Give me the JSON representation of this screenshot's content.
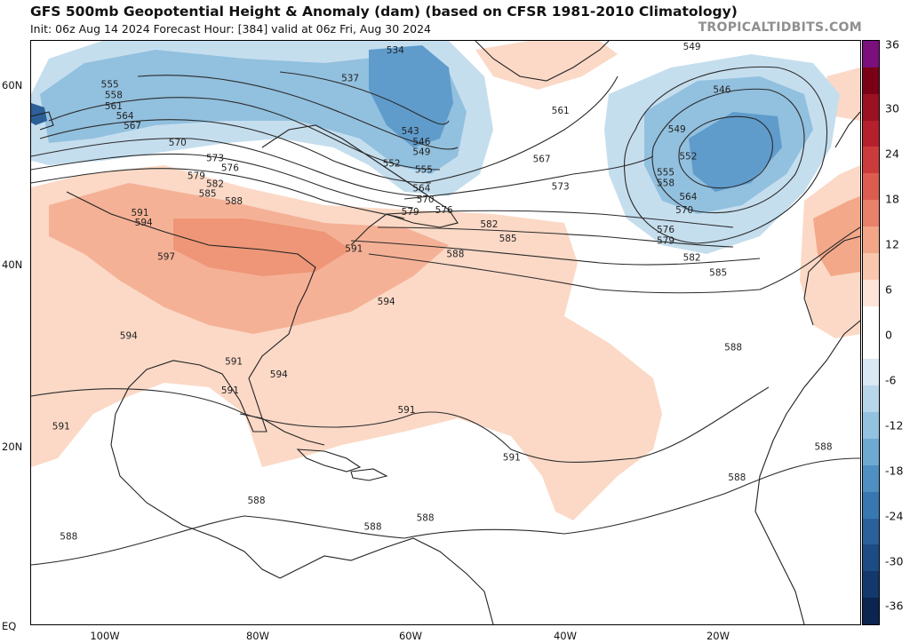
{
  "header": {
    "title": "GFS 500mb Geopotential Height & Anomaly (dam) (based on CFSR 1981-2010 Climatology)",
    "subtitle": "Init: 06z Aug 14 2024   Forecast Hour: [384]   valid at 06z Fri, Aug 30 2024",
    "brand": "TROPICALTIDBITS.COM"
  },
  "axes": {
    "latitudes": [
      "60N",
      "40N",
      "20N",
      "EQ"
    ],
    "longitudes": [
      "100W",
      "80W",
      "60W",
      "40W",
      "20W"
    ]
  },
  "colorbar": {
    "ticks": [
      "36",
      "30",
      "24",
      "18",
      "12",
      "6",
      "0",
      "-6",
      "-12",
      "-18",
      "-24",
      "-30",
      "-36"
    ],
    "colors": [
      "#7b0f7b",
      "#7a0016",
      "#9b1121",
      "#b5202c",
      "#cc3b3b",
      "#dc5d4f",
      "#e9806a",
      "#f2a587",
      "#f8c7ae",
      "#fce5d8",
      "#ffffff",
      "#ffffff",
      "#d9e8f3",
      "#b8d6ea",
      "#93c1e0",
      "#6ea9d2",
      "#4f90c3",
      "#3878b2",
      "#2a619c",
      "#1d4b84",
      "#13386b",
      "#0b2550"
    ]
  },
  "contour_labels": [
    {
      "text": "534",
      "lon": -61.5,
      "lat": 63.6
    },
    {
      "text": "537",
      "lon": -67.5,
      "lat": 60.5
    },
    {
      "text": "543",
      "lon": -59.5,
      "lat": 54.6
    },
    {
      "text": "546",
      "lon": -58.0,
      "lat": 53.4
    },
    {
      "text": "549",
      "lon": -58.0,
      "lat": 52.3
    },
    {
      "text": "552",
      "lon": -62.0,
      "lat": 51.0
    },
    {
      "text": "555",
      "lon": -57.7,
      "lat": 50.3
    },
    {
      "text": "564",
      "lon": -58.0,
      "lat": 48.2
    },
    {
      "text": "570",
      "lon": -57.5,
      "lat": 47.0
    },
    {
      "text": "576",
      "lon": -55.0,
      "lat": 45.8
    },
    {
      "text": "579",
      "lon": -59.5,
      "lat": 45.6
    },
    {
      "text": "582",
      "lon": -49.0,
      "lat": 44.2
    },
    {
      "text": "585",
      "lon": -46.5,
      "lat": 42.6
    },
    {
      "text": "588",
      "lon": -53.5,
      "lat": 40.9
    },
    {
      "text": "591",
      "lon": -67.0,
      "lat": 41.5
    },
    {
      "text": "594",
      "lon": -62.7,
      "lat": 35.6
    },
    {
      "text": "594",
      "lon": -77.0,
      "lat": 27.5
    },
    {
      "text": "591",
      "lon": -60.0,
      "lat": 23.5
    },
    {
      "text": "591",
      "lon": -46.0,
      "lat": 18.2
    },
    {
      "text": "591",
      "lon": -83.0,
      "lat": 28.9
    },
    {
      "text": "594",
      "lon": -97.0,
      "lat": 31.8
    },
    {
      "text": "597",
      "lon": -92.0,
      "lat": 40.6
    },
    {
      "text": "594",
      "lon": -95.0,
      "lat": 44.4
    },
    {
      "text": "591",
      "lon": -95.5,
      "lat": 45.5
    },
    {
      "text": "588",
      "lon": -83.0,
      "lat": 46.8
    },
    {
      "text": "585",
      "lon": -86.5,
      "lat": 47.6
    },
    {
      "text": "582",
      "lon": -85.5,
      "lat": 48.7
    },
    {
      "text": "579",
      "lon": -88.0,
      "lat": 49.6
    },
    {
      "text": "576",
      "lon": -83.5,
      "lat": 50.5
    },
    {
      "text": "573",
      "lon": -85.5,
      "lat": 51.6
    },
    {
      "text": "570",
      "lon": -90.5,
      "lat": 53.3
    },
    {
      "text": "567",
      "lon": -96.5,
      "lat": 55.2
    },
    {
      "text": "564",
      "lon": -97.5,
      "lat": 56.3
    },
    {
      "text": "561",
      "lon": -99.0,
      "lat": 57.4
    },
    {
      "text": "558",
      "lon": -99.0,
      "lat": 58.6
    },
    {
      "text": "555",
      "lon": -99.5,
      "lat": 59.8
    },
    {
      "text": "561",
      "lon": -39.5,
      "lat": 56.9
    },
    {
      "text": "567",
      "lon": -42.0,
      "lat": 51.5
    },
    {
      "text": "573",
      "lon": -39.5,
      "lat": 48.4
    },
    {
      "text": "549",
      "lon": -22.0,
      "lat": 64.0
    },
    {
      "text": "546",
      "lon": -18.0,
      "lat": 59.2
    },
    {
      "text": "549",
      "lon": -24.0,
      "lat": 54.8
    },
    {
      "text": "552",
      "lon": -22.5,
      "lat": 51.8
    },
    {
      "text": "555",
      "lon": -25.5,
      "lat": 50.0
    },
    {
      "text": "558",
      "lon": -25.5,
      "lat": 48.8
    },
    {
      "text": "564",
      "lon": -22.5,
      "lat": 47.3
    },
    {
      "text": "570",
      "lon": -23.0,
      "lat": 45.8
    },
    {
      "text": "576",
      "lon": -25.5,
      "lat": 43.6
    },
    {
      "text": "579",
      "lon": -25.5,
      "lat": 42.4
    },
    {
      "text": "582",
      "lon": -22.0,
      "lat": 40.5
    },
    {
      "text": "585",
      "lon": -18.5,
      "lat": 38.8
    },
    {
      "text": "588",
      "lon": -16.5,
      "lat": 30.5
    },
    {
      "text": "588",
      "lon": -4.5,
      "lat": 19.4
    },
    {
      "text": "588",
      "lon": -16.0,
      "lat": 16.0
    },
    {
      "text": "588",
      "lon": -80.0,
      "lat": 13.4
    },
    {
      "text": "588",
      "lon": -64.5,
      "lat": 10.5
    },
    {
      "text": "588",
      "lon": -57.5,
      "lat": 11.5
    },
    {
      "text": "588",
      "lon": -105.0,
      "lat": 9.4
    },
    {
      "text": "591",
      "lon": -106.0,
      "lat": 21.7
    },
    {
      "text": "591",
      "lon": -83.5,
      "lat": 25.7
    }
  ]
}
